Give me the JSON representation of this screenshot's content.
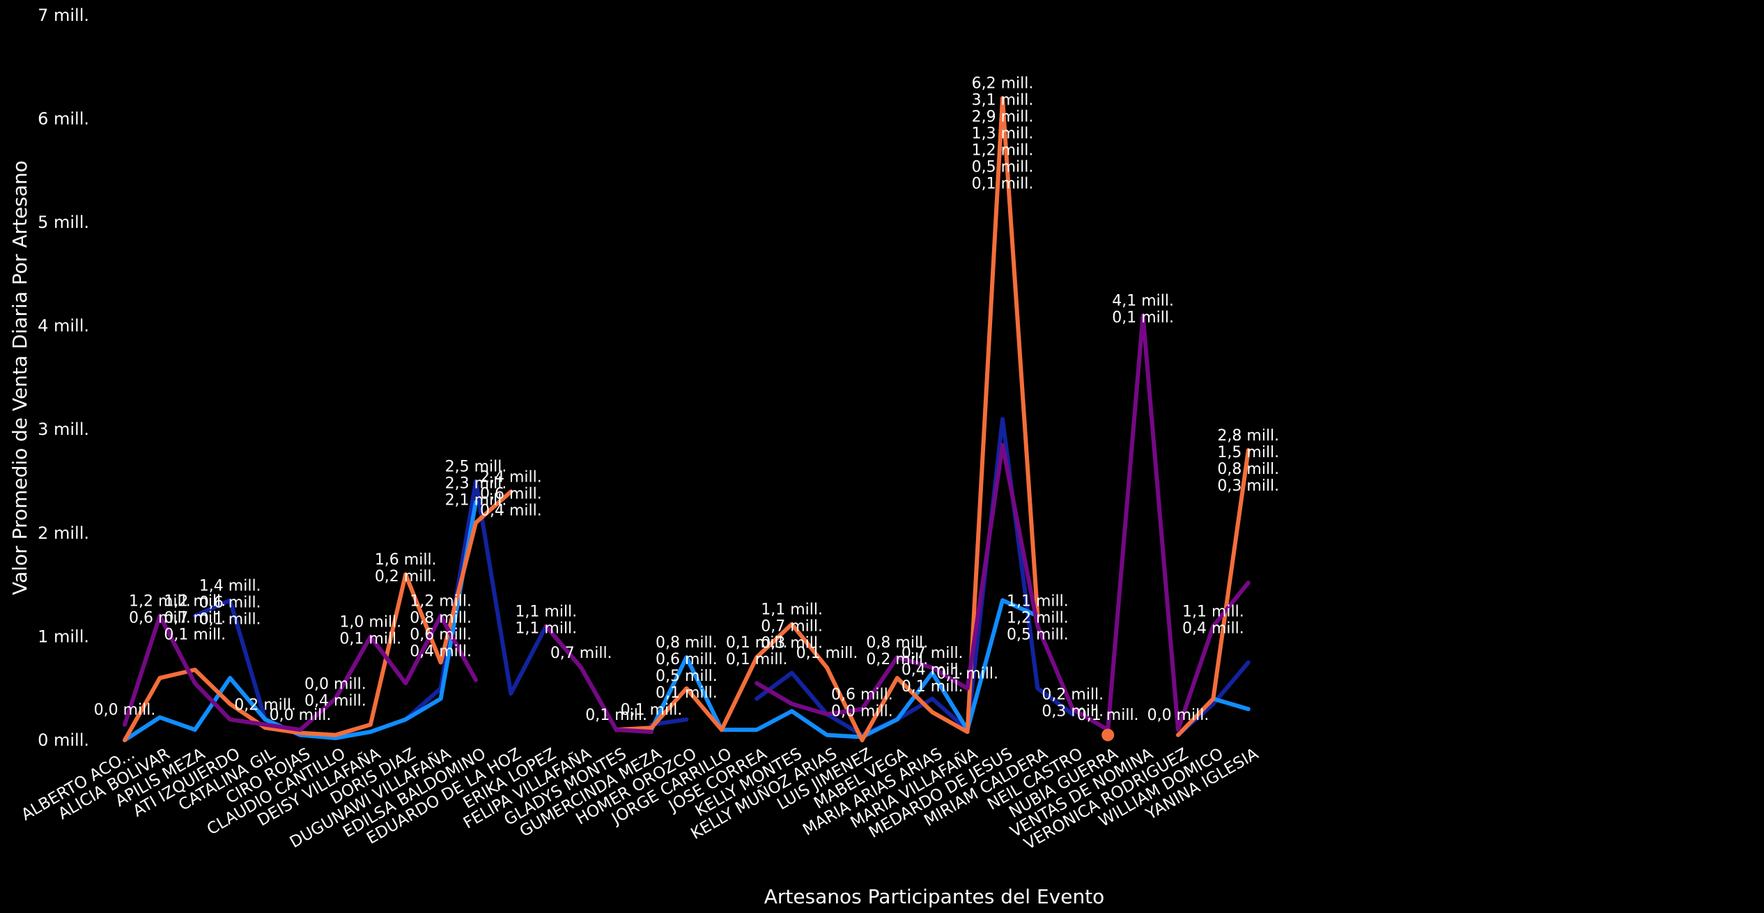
{
  "chart_data": {
    "type": "line",
    "xlabel": "Artesanos Participantes del Evento",
    "ylabel": "Valor Promedio de Venta Diaria Por Artesano",
    "ylim": [
      0,
      7
    ],
    "y_ticks": [
      "0 mill.",
      "1 mill.",
      "2 mill.",
      "3 mill.",
      "4 mill.",
      "5 mill.",
      "6 mill.",
      "7 mill."
    ],
    "grid": false,
    "legend": "none",
    "categories": [
      "ALBERTO ACO...",
      "ALICIA BOLIVAR",
      "APILIS MEZA",
      "ATI IZQUIERDO",
      "CATALINA GIL",
      "CIRO ROJAS",
      "CLAUDIO CANTILLO",
      "DEISY VILLAFAÑA",
      "DORIS DIAZ",
      "DUGUNAWI VILLAFAÑA",
      "EDILSA BALDOMINO",
      "EDUARDO DE LA HOZ",
      "ERIKA LOPEZ",
      "FELIPA VILLAFAÑA",
      "GLADYS MONTES",
      "GUMERCINDA MEZA",
      "HOMER OROZCO",
      "JORGE CARRILLO",
      "JOSE CORREA",
      "KELLY MONTES",
      "KELLY MUÑOZ ARIAS",
      "LUIS JIMENEZ",
      "MABEL VEGA",
      "MARIA ARIAS ARIAS",
      "MARIA VILLAFAÑA",
      "MEDARDO DE JESUS",
      "MIRIAM CALDERA",
      "NEIL CASTRO",
      "NUBIA GUERRA",
      "VENTAS DE NOMINA",
      "VERONICA RODRIGUEZ",
      "WILLIAM DOMICO",
      "YANINA IGLESIA"
    ],
    "series": [
      {
        "color": "#12239E",
        "values": [
          null,
          null,
          1.2,
          1.35,
          0.2,
          0.05,
          0.03,
          0.08,
          0.2,
          0.5,
          2.5,
          0.45,
          1.1,
          null,
          null,
          0.15,
          0.2,
          null,
          0.4,
          0.65,
          0.25,
          0.05,
          0.2,
          0.4,
          0.1,
          3.1,
          0.5,
          0.25,
          null,
          null,
          0.05,
          0.35,
          0.75
        ]
      },
      {
        "color": "#118DFF",
        "values": [
          0.0,
          0.22,
          0.1,
          0.6,
          0.2,
          0.05,
          0.02,
          0.08,
          0.2,
          0.4,
          2.3,
          null,
          null,
          null,
          null,
          0.1,
          0.8,
          0.1,
          0.1,
          0.28,
          0.05,
          0.03,
          0.2,
          0.65,
          0.1,
          1.35,
          1.2,
          null,
          null,
          null,
          null,
          0.4,
          0.3
        ]
      },
      {
        "color": "#F46E3B",
        "values": [
          0.0,
          0.6,
          0.68,
          0.35,
          0.12,
          0.07,
          0.05,
          0.15,
          1.6,
          0.75,
          2.1,
          2.4,
          null,
          null,
          0.1,
          0.12,
          0.5,
          0.1,
          0.8,
          1.12,
          0.7,
          0.0,
          0.6,
          0.27,
          0.08,
          6.2,
          1.2,
          null,
          0.05,
          null,
          0.05,
          0.4,
          2.8
        ]
      },
      {
        "color": "#750985",
        "values": [
          0.15,
          1.2,
          0.55,
          0.2,
          0.15,
          0.1,
          0.4,
          1.0,
          0.55,
          1.2,
          0.58,
          null,
          1.1,
          0.7,
          0.1,
          0.08,
          null,
          null,
          0.55,
          0.35,
          0.25,
          0.3,
          0.8,
          0.7,
          0.5,
          2.85,
          1.1,
          0.3,
          0.1,
          4.1,
          0.1,
          1.1,
          1.52
        ]
      }
    ],
    "point_markers": [
      {
        "category": "NUBIA GUERRA",
        "value": 0.05,
        "color": "#F46E3B"
      }
    ],
    "data_labels": [
      {
        "category": "ALBERTO ACO...",
        "text": "0,0 mill."
      },
      {
        "category": "ALICIA BOLIVAR",
        "text": "1,2 mill."
      },
      {
        "category": "ALICIA BOLIVAR",
        "text": "0,6 mill."
      },
      {
        "category": "APILIS MEZA",
        "text": "1,2 mill."
      },
      {
        "category": "APILIS MEZA",
        "text": "0,7 mill."
      },
      {
        "category": "APILIS MEZA",
        "text": "0,1 mill."
      },
      {
        "category": "ATI IZQUIERDO",
        "text": "1,4 mill."
      },
      {
        "category": "ATI IZQUIERDO",
        "text": "0,6 mill."
      },
      {
        "category": "ATI IZQUIERDO",
        "text": "0,1 mill."
      },
      {
        "category": "CATALINA GIL",
        "text": "0,2 mill."
      },
      {
        "category": "CIRO ROJAS",
        "text": "0,0 mill."
      },
      {
        "category": "CLAUDIO CANTILLO",
        "text": "0,0 mill."
      },
      {
        "category": "CLAUDIO CANTILLO",
        "text": "0,4 mill."
      },
      {
        "category": "DEISY VILLAFAÑA",
        "text": "1,0 mill."
      },
      {
        "category": "DEISY VILLAFAÑA",
        "text": "0,1 mill."
      },
      {
        "category": "DORIS DIAZ",
        "text": "1,6 mill."
      },
      {
        "category": "DORIS DIAZ",
        "text": "0,2 mill."
      },
      {
        "category": "DUGUNAWI VILLAFAÑA",
        "text": "1,2 mill."
      },
      {
        "category": "DUGUNAWI VILLAFAÑA",
        "text": "0,8 mill."
      },
      {
        "category": "DUGUNAWI VILLAFAÑA",
        "text": "0,6 mill."
      },
      {
        "category": "DUGUNAWI VILLAFAÑA",
        "text": "0,4 mill."
      },
      {
        "category": "EDILSA BALDOMINO",
        "text": "2,5 mill."
      },
      {
        "category": "EDILSA BALDOMINO",
        "text": "2,3 mill."
      },
      {
        "category": "EDILSA BALDOMINO",
        "text": "2,1 mill."
      },
      {
        "category": "EDUARDO DE LA HOZ",
        "text": "2,4 mill."
      },
      {
        "category": "EDUARDO DE LA HOZ",
        "text": "0,6 mill."
      },
      {
        "category": "EDUARDO DE LA HOZ",
        "text": "0,4 mill."
      },
      {
        "category": "ERIKA LOPEZ",
        "text": "1,1 mill."
      },
      {
        "category": "ERIKA LOPEZ",
        "text": "1,1 mill."
      },
      {
        "category": "FELIPA VILLAFAÑA",
        "text": "0,7 mill."
      },
      {
        "category": "GLADYS MONTES",
        "text": "0,1 mill."
      },
      {
        "category": "GUMERCINDA MEZA",
        "text": "0,1 mill."
      },
      {
        "category": "HOMER OROZCO",
        "text": "0,8 mill."
      },
      {
        "category": "HOMER OROZCO",
        "text": "0,6 mill."
      },
      {
        "category": "HOMER OROZCO",
        "text": "0,5 mill."
      },
      {
        "category": "HOMER OROZCO",
        "text": "0,1 mill."
      },
      {
        "category": "JOSE CORREA",
        "text": "0,1 mill."
      },
      {
        "category": "JOSE CORREA",
        "text": "0,1 mill."
      },
      {
        "category": "KELLY MONTES",
        "text": "1,1 mill."
      },
      {
        "category": "KELLY MONTES",
        "text": "0,7 mill."
      },
      {
        "category": "KELLY MONTES",
        "text": "0,3 mill."
      },
      {
        "category": "KELLY MUÑOZ ARIAS",
        "text": "0,1 mill."
      },
      {
        "category": "LUIS JIMENEZ",
        "text": "0,6 mill."
      },
      {
        "category": "LUIS JIMENEZ",
        "text": "0,0 mill."
      },
      {
        "category": "MABEL VEGA",
        "text": "0,8 mill."
      },
      {
        "category": "MABEL VEGA",
        "text": "0,2 mill."
      },
      {
        "category": "MARIA ARIAS ARIAS",
        "text": "0,7 mill."
      },
      {
        "category": "MARIA ARIAS ARIAS",
        "text": "0,4 mill."
      },
      {
        "category": "MARIA ARIAS ARIAS",
        "text": "0,1 mill."
      },
      {
        "category": "MARIA VILLAFAÑA",
        "text": "0,1 mill."
      },
      {
        "category": "MEDARDO DE JESUS",
        "text": "6,2 mill."
      },
      {
        "category": "MEDARDO DE JESUS",
        "text": "3,1 mill."
      },
      {
        "category": "MEDARDO DE JESUS",
        "text": "2,9 mill."
      },
      {
        "category": "MEDARDO DE JESUS",
        "text": "1,3 mill."
      },
      {
        "category": "MEDARDO DE JESUS",
        "text": "1,2 mill."
      },
      {
        "category": "MEDARDO DE JESUS",
        "text": "0,5 mill."
      },
      {
        "category": "MEDARDO DE JESUS",
        "text": "0,1 mill."
      },
      {
        "category": "MIRIAM CALDERA",
        "text": "1,1 mill."
      },
      {
        "category": "MIRIAM CALDERA",
        "text": "1,2 mill."
      },
      {
        "category": "MIRIAM CALDERA",
        "text": "0,5 mill."
      },
      {
        "category": "NEIL CASTRO",
        "text": "0,2 mill."
      },
      {
        "category": "NEIL CASTRO",
        "text": "0,3 mill."
      },
      {
        "category": "NUBIA GUERRA",
        "text": "0,1 mill."
      },
      {
        "category": "VENTAS DE NOMINA",
        "text": "4,1 mill."
      },
      {
        "category": "VENTAS DE NOMINA",
        "text": "0,1 mill."
      },
      {
        "category": "VERONICA RODRIGUEZ",
        "text": "0,0 mill."
      },
      {
        "category": "WILLIAM DOMICO",
        "text": "1,1 mill."
      },
      {
        "category": "WILLIAM DOMICO",
        "text": "0,4 mill."
      },
      {
        "category": "YANINA IGLESIA",
        "text": "2,8 mill."
      },
      {
        "category": "YANINA IGLESIA",
        "text": "1,5 mill."
      },
      {
        "category": "YANINA IGLESIA",
        "text": "0,8 mill."
      },
      {
        "category": "YANINA IGLESIA",
        "text": "0,3 mill."
      }
    ]
  }
}
